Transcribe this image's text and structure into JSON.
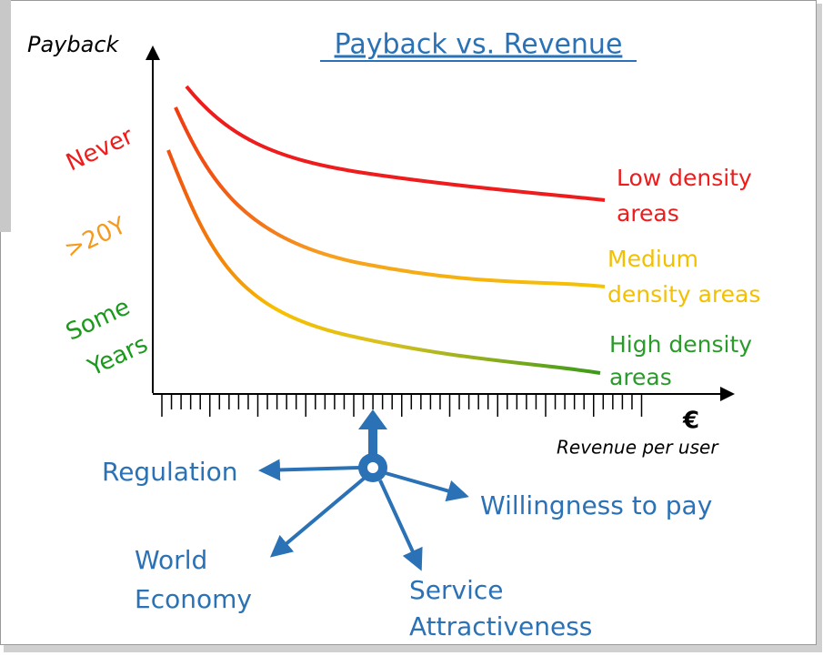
{
  "title": "Payback vs. Revenue",
  "y_axis": {
    "label": "Payback",
    "levels": [
      [
        "Never"
      ],
      [
        ">20Y"
      ],
      [
        "Some",
        "Years"
      ]
    ]
  },
  "x_axis": {
    "unit": "€",
    "label": "Revenue per user"
  },
  "curves": [
    [
      "Low density",
      "areas"
    ],
    [
      "Medium",
      "density areas"
    ],
    [
      "High density",
      "areas"
    ]
  ],
  "drivers": [
    [
      "Regulation"
    ],
    [
      "Willingness to pay"
    ],
    [
      "World",
      "Economy"
    ],
    [
      "Service",
      "Attractiveness"
    ]
  ]
}
